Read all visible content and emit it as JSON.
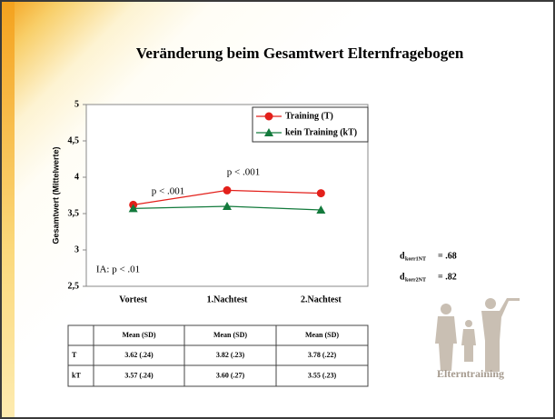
{
  "chart_data": {
    "type": "line",
    "title": "Veränderung beim Gesamtwert Elternfragebogen",
    "y_label": "Gesamtwert (Mittelwerte)",
    "categories": [
      "Vortest",
      "1.Nachtest",
      "2.Nachtest"
    ],
    "series": [
      {
        "name": "Training (T)",
        "color": "#e3201b",
        "marker": "circle",
        "values": [
          3.62,
          3.82,
          3.78
        ]
      },
      {
        "name": "kein Training (kT)",
        "color": "#137a3c",
        "marker": "triangle",
        "values": [
          3.57,
          3.6,
          3.55
        ]
      }
    ],
    "ylim": [
      2.5,
      5
    ],
    "yticks": [
      {
        "value": 2.5,
        "label": "2,5"
      },
      3,
      {
        "value": 3.5,
        "label": "3,5"
      },
      4,
      {
        "value": 4.5,
        "label": "4,5"
      },
      5
    ],
    "legend": "upper right",
    "annotations": [
      "p < .001",
      "p < .001",
      "IA: p < .01"
    ]
  },
  "table": {
    "header": [
      "Mean (SD)",
      "Mean (SD)",
      "Mean (SD)"
    ],
    "rows": [
      [
        "T",
        "3.62 (.24)",
        "3.82 (.23)",
        "3.78 (.22)"
      ],
      [
        "kT",
        "3.57 (.24)",
        "3.60 (.27)",
        "3.55 (.23)"
      ]
    ]
  },
  "effect_sizes": [
    {
      "symbol": "d",
      "sub": "korr1NT",
      "value": "= .68"
    },
    {
      "symbol": "d",
      "sub": "korr2NT",
      "value": "= .82"
    }
  ],
  "image_caption": "Elterntraining"
}
